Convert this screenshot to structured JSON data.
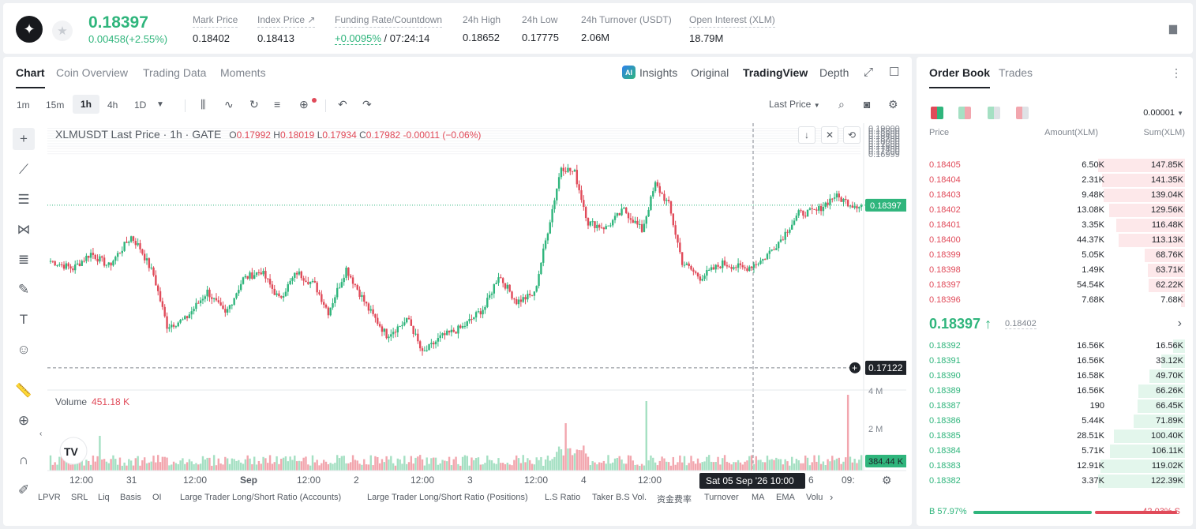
{
  "ticker": {
    "price": "0.18397",
    "change": "0.00458(+2.55%)",
    "stats": [
      {
        "label": "Mark Price",
        "value": "0.18402"
      },
      {
        "label": "Index Price ↗",
        "value": "0.18413"
      },
      {
        "label": "Funding Rate/Countdown",
        "value_rate": "+0.0095%",
        "value_countdown": " / 07:24:14"
      },
      {
        "label": "24h High",
        "value": "0.18652"
      },
      {
        "label": "24h Low",
        "value": "0.17775"
      },
      {
        "label": "24h Turnover (USDT)",
        "value": "2.06M"
      },
      {
        "label": "Open Interest (XLM)",
        "value": "18.79M"
      }
    ]
  },
  "chart_tabs": [
    "Chart",
    "Coin Overview",
    "Trading Data",
    "Moments"
  ],
  "view_tabs": [
    "Insights",
    "Original",
    "TradingView",
    "Depth"
  ],
  "ai_badge": "AI",
  "intervals": [
    "1m",
    "15m",
    "1h",
    "4h",
    "1D"
  ],
  "price_source": "Last Price",
  "legend": {
    "symbol": "XLMUSDT Last Price · 1h · GATE",
    "o": "0.17992",
    "h": "0.18019",
    "l": "0.17934",
    "c": "0.17982",
    "chg": "-0.00011 (−0.06%)"
  },
  "volume_legend": {
    "label": "Volume",
    "value": "451.18 K"
  },
  "axis": {
    "price_ticks": [
      "0.19000",
      "0.18800",
      "0.18600",
      "0.18400",
      "0.18200",
      "0.18000",
      "0.17800",
      "0.17600",
      "0.17400",
      "0.17200",
      "0.16999"
    ],
    "last_price_tag": "0.18397",
    "cross_price_tag": "0.17122",
    "vol_ticks": [
      "4 M",
      "2 M"
    ],
    "vol_tag": "384.44 K",
    "time_ticks": [
      "12:00",
      "31",
      "12:00",
      "Sep",
      "12:00",
      "2",
      "12:00",
      "3",
      "12:00",
      "4",
      "12:00",
      "6",
      "09:"
    ],
    "cross_time": "Sat 05 Sep '26    10:00"
  },
  "indicators": [
    "LPVR",
    "SRL",
    "Liq",
    "Basis",
    "OI",
    "Large Trader Long/Short Ratio (Accounts)",
    "Large Trader Long/Short Ratio (Positions)",
    "L.S Ratio",
    "Taker B.S Vol.",
    "资金费率",
    "Turnover",
    "MA",
    "EMA",
    "Volu"
  ],
  "colors": {
    "up": "#2fb57c",
    "down": "#e04a59",
    "up_light": "#a5e0c3",
    "down_light": "#f2a6ae"
  },
  "order_book": {
    "tabs": [
      "Order Book",
      "Trades"
    ],
    "precision": "0.00001",
    "headers": {
      "price": "Price",
      "amount": "Amount(XLM)",
      "sum": "Sum(XLM)"
    },
    "asks": [
      {
        "p": "0.18405",
        "a": "6.50K",
        "s": "147.85K",
        "depth": 1.0
      },
      {
        "p": "0.18404",
        "a": "2.31K",
        "s": "141.35K",
        "depth": 0.956
      },
      {
        "p": "0.18403",
        "a": "9.48K",
        "s": "139.04K",
        "depth": 0.94
      },
      {
        "p": "0.18402",
        "a": "13.08K",
        "s": "129.56K",
        "depth": 0.876
      },
      {
        "p": "0.18401",
        "a": "3.35K",
        "s": "116.48K",
        "depth": 0.788
      },
      {
        "p": "0.18400",
        "a": "44.37K",
        "s": "113.13K",
        "depth": 0.765
      },
      {
        "p": "0.18399",
        "a": "5.05K",
        "s": "68.76K",
        "depth": 0.465
      },
      {
        "p": "0.18398",
        "a": "1.49K",
        "s": "63.71K",
        "depth": 0.431
      },
      {
        "p": "0.18397",
        "a": "54.54K",
        "s": "62.22K",
        "depth": 0.42
      },
      {
        "p": "0.18396",
        "a": "7.68K",
        "s": "7.68K",
        "depth": 0.05
      }
    ],
    "mid_price": "0.18397 ↑",
    "mid_mark": "0.18402",
    "bids": [
      {
        "p": "0.18392",
        "a": "16.56K",
        "s": "16.56K",
        "depth": 0.135
      },
      {
        "p": "0.18391",
        "a": "16.56K",
        "s": "33.12K",
        "depth": 0.271
      },
      {
        "p": "0.18390",
        "a": "16.58K",
        "s": "49.70K",
        "depth": 0.406
      },
      {
        "p": "0.18389",
        "a": "16.56K",
        "s": "66.26K",
        "depth": 0.541
      },
      {
        "p": "0.18387",
        "a": "190",
        "s": "66.45K",
        "depth": 0.543
      },
      {
        "p": "0.18386",
        "a": "5.44K",
        "s": "71.89K",
        "depth": 0.587
      },
      {
        "p": "0.18385",
        "a": "28.51K",
        "s": "100.40K",
        "depth": 0.82
      },
      {
        "p": "0.18384",
        "a": "5.71K",
        "s": "106.11K",
        "depth": 0.867
      },
      {
        "p": "0.18383",
        "a": "12.91K",
        "s": "119.02K",
        "depth": 0.972
      },
      {
        "p": "0.18382",
        "a": "3.37K",
        "s": "122.39K",
        "depth": 1.0
      }
    ],
    "buy_ratio": "B 57.97%",
    "sell_ratio": "42.03% S",
    "buy_fraction": 0.5797
  }
}
